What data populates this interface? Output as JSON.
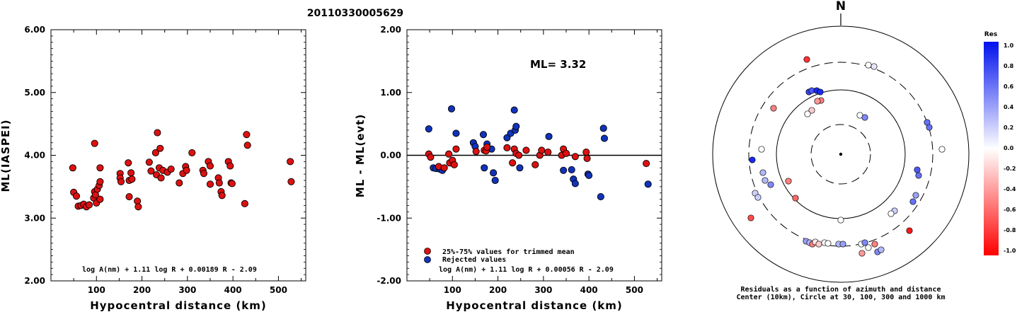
{
  "title": "20110330005629",
  "colors": {
    "accepted": "#dd1111",
    "rejected": "#1133bb"
  },
  "chart_data": [
    {
      "type": "scatter",
      "ylabel": "ML(IASPEI)",
      "xlabel": "Hypocentral distance (km)",
      "xlim": [
        0,
        560
      ],
      "ylim": [
        2.0,
        6.0
      ],
      "xticks": [
        "100",
        "200",
        "300",
        "400",
        "500"
      ],
      "yticks": [
        "2.00",
        "3.00",
        "4.00",
        "5.00",
        "6.00"
      ],
      "formula": "log A(nm) + 1.11 log R + 0.00189 R - 2.09",
      "points": [
        [
          48,
          3.8
        ],
        [
          50,
          3.41
        ],
        [
          56,
          3.35
        ],
        [
          60,
          3.19
        ],
        [
          66,
          3.2
        ],
        [
          72,
          3.22
        ],
        [
          78,
          3.18
        ],
        [
          84,
          3.21
        ],
        [
          96,
          4.19
        ],
        [
          94,
          3.32
        ],
        [
          96,
          3.42
        ],
        [
          98,
          3.37
        ],
        [
          100,
          3.24
        ],
        [
          102,
          3.46
        ],
        [
          106,
          3.52
        ],
        [
          108,
          3.3
        ],
        [
          108,
          3.8
        ],
        [
          108,
          3.58
        ],
        [
          152,
          3.71
        ],
        [
          152,
          3.64
        ],
        [
          154,
          3.58
        ],
        [
          170,
          3.88
        ],
        [
          172,
          3.34
        ],
        [
          172,
          3.6
        ],
        [
          176,
          3.72
        ],
        [
          178,
          3.62
        ],
        [
          190,
          3.27
        ],
        [
          192,
          3.18
        ],
        [
          216,
          3.89
        ],
        [
          220,
          3.75
        ],
        [
          230,
          4.04
        ],
        [
          232,
          3.69
        ],
        [
          234,
          4.36
        ],
        [
          238,
          3.8
        ],
        [
          240,
          4.11
        ],
        [
          242,
          3.64
        ],
        [
          246,
          3.76
        ],
        [
          256,
          3.73
        ],
        [
          264,
          3.78
        ],
        [
          282,
          3.56
        ],
        [
          290,
          3.71
        ],
        [
          296,
          3.82
        ],
        [
          298,
          3.76
        ],
        [
          310,
          4.04
        ],
        [
          334,
          3.76
        ],
        [
          336,
          3.71
        ],
        [
          346,
          3.9
        ],
        [
          350,
          3.83
        ],
        [
          350,
          3.54
        ],
        [
          368,
          3.64
        ],
        [
          370,
          3.56
        ],
        [
          374,
          3.42
        ],
        [
          376,
          3.36
        ],
        [
          390,
          3.9
        ],
        [
          394,
          3.83
        ],
        [
          396,
          3.56
        ],
        [
          398,
          3.55
        ],
        [
          426,
          3.23
        ],
        [
          430,
          4.33
        ],
        [
          432,
          4.16
        ],
        [
          526,
          3.9
        ],
        [
          528,
          3.58
        ]
      ]
    },
    {
      "type": "scatter",
      "ylabel": "ML - ML(evt)",
      "xlabel": "Hypocentral distance (km)",
      "xlim": [
        0,
        560
      ],
      "ylim": [
        -2.0,
        2.0
      ],
      "xticks": [
        "100",
        "200",
        "300",
        "400",
        "500"
      ],
      "yticks": [
        "-2.00",
        "-1.00",
        "0.00",
        "1.00",
        "2.00"
      ],
      "annotation": "ML= 3.32",
      "formula": "log A(nm) + 1.11 log R + 0.00056 R - 2.09",
      "legend": [
        "25%-75% values for trimmed mean",
        "Rejected values"
      ],
      "accepted": [
        [
          48,
          0.02
        ],
        [
          52,
          -0.03
        ],
        [
          70,
          -0.18
        ],
        [
          82,
          -0.2
        ],
        [
          92,
          0.02
        ],
        [
          94,
          -0.12
        ],
        [
          100,
          -0.08
        ],
        [
          104,
          -0.15
        ],
        [
          108,
          0.1
        ],
        [
          152,
          0.06
        ],
        [
          170,
          0.08
        ],
        [
          174,
          0.07
        ],
        [
          176,
          0.13
        ],
        [
          220,
          0.12
        ],
        [
          232,
          -0.12
        ],
        [
          236,
          0.1
        ],
        [
          240,
          0.03
        ],
        [
          246,
          0.0
        ],
        [
          262,
          0.08
        ],
        [
          282,
          -0.15
        ],
        [
          292,
          0.0
        ],
        [
          296,
          0.08
        ],
        [
          310,
          0.05
        ],
        [
          340,
          0.0
        ],
        [
          344,
          0.1
        ],
        [
          350,
          0.03
        ],
        [
          370,
          -0.02
        ],
        [
          394,
          0.05
        ],
        [
          396,
          -0.05
        ],
        [
          526,
          -0.13
        ]
      ],
      "rejected": [
        [
          48,
          0.42
        ],
        [
          58,
          -0.2
        ],
        [
          64,
          -0.21
        ],
        [
          72,
          -0.22
        ],
        [
          78,
          -0.24
        ],
        [
          98,
          0.74
        ],
        [
          108,
          0.35
        ],
        [
          146,
          0.2
        ],
        [
          150,
          0.14
        ],
        [
          168,
          0.33
        ],
        [
          170,
          -0.2
        ],
        [
          176,
          0.18
        ],
        [
          186,
          0.1
        ],
        [
          190,
          -0.28
        ],
        [
          194,
          -0.4
        ],
        [
          220,
          0.28
        ],
        [
          228,
          0.35
        ],
        [
          236,
          0.72
        ],
        [
          238,
          0.4
        ],
        [
          240,
          0.46
        ],
        [
          248,
          -0.2
        ],
        [
          312,
          0.3
        ],
        [
          344,
          -0.24
        ],
        [
          362,
          -0.23
        ],
        [
          366,
          -0.38
        ],
        [
          370,
          -0.45
        ],
        [
          398,
          -0.3
        ],
        [
          400,
          -0.32
        ],
        [
          426,
          -0.66
        ],
        [
          432,
          0.43
        ],
        [
          434,
          0.27
        ],
        [
          530,
          -0.46
        ]
      ]
    },
    {
      "type": "scatter",
      "north_label": "N",
      "caption": [
        "Residuals as a function of azimuth and distance",
        "Center (10km), Circle at 30, 100, 300 and 1000 km"
      ],
      "colorbar": {
        "title": "Res",
        "ticks": [
          "1.0",
          "0.8",
          "0.6",
          "0.4",
          "0.2",
          "0.0",
          "-0.2",
          "-0.4",
          "-0.6",
          "-0.8",
          "-1.0"
        ]
      },
      "points": [
        [
          -48,
          -134,
          -0.8
        ],
        [
          39,
          -126,
          0.0
        ],
        [
          47,
          -124,
          0.1
        ],
        [
          -45,
          -88,
          0.8
        ],
        [
          -41,
          -90,
          0.7
        ],
        [
          -34,
          -90,
          0.9
        ],
        [
          -29,
          -88,
          0.9
        ],
        [
          -28,
          -76,
          -0.5
        ],
        [
          -33,
          -75,
          -0.4
        ],
        [
          -41,
          -62,
          -0.2
        ],
        [
          -47,
          -57,
          0.0
        ],
        [
          27,
          -55,
          0.0
        ],
        [
          34,
          -52,
          0.5
        ],
        [
          -95,
          -65,
          -0.5
        ],
        [
          122,
          -45,
          0.6
        ],
        [
          125,
          -38,
          0.6
        ],
        [
          143,
          -7,
          0.0
        ],
        [
          -112,
          -7,
          0.0
        ],
        [
          -125,
          8,
          0.9
        ],
        [
          -110,
          26,
          0.3
        ],
        [
          -107,
          37,
          0.3
        ],
        [
          -99,
          43,
          0.5
        ],
        [
          -74,
          38,
          -0.5
        ],
        [
          -121,
          55,
          0.2
        ],
        [
          -117,
          61,
          0.2
        ],
        [
          -64,
          62,
          -0.6
        ],
        [
          -127,
          90,
          -0.7
        ],
        [
          108,
          22,
          0.7
        ],
        [
          110,
          30,
          0.6
        ],
        [
          106,
          58,
          0.4
        ],
        [
          102,
          67,
          0.6
        ],
        [
          76,
          80,
          0.2
        ],
        [
          71,
          84,
          0.0
        ],
        [
          0,
          93,
          0.0
        ],
        [
          97,
          108,
          -0.9
        ],
        [
          -49,
          123,
          0.4
        ],
        [
          -44,
          125,
          0.3
        ],
        [
          -40,
          127,
          -0.5
        ],
        [
          -36,
          124,
          -0.1
        ],
        [
          -31,
          127,
          -0.2
        ],
        [
          -23,
          125,
          0.0
        ],
        [
          -18,
          126,
          0.0
        ],
        [
          -3,
          127,
          0.3
        ],
        [
          3,
          127,
          0.4
        ],
        [
          29,
          127,
          0.0
        ],
        [
          34,
          125,
          0.5
        ],
        [
          39,
          132,
          0.0
        ],
        [
          48,
          127,
          -0.5
        ],
        [
          52,
          138,
          0.5
        ],
        [
          57,
          135,
          0.3
        ],
        [
          30,
          140,
          -0.4
        ]
      ]
    }
  ]
}
